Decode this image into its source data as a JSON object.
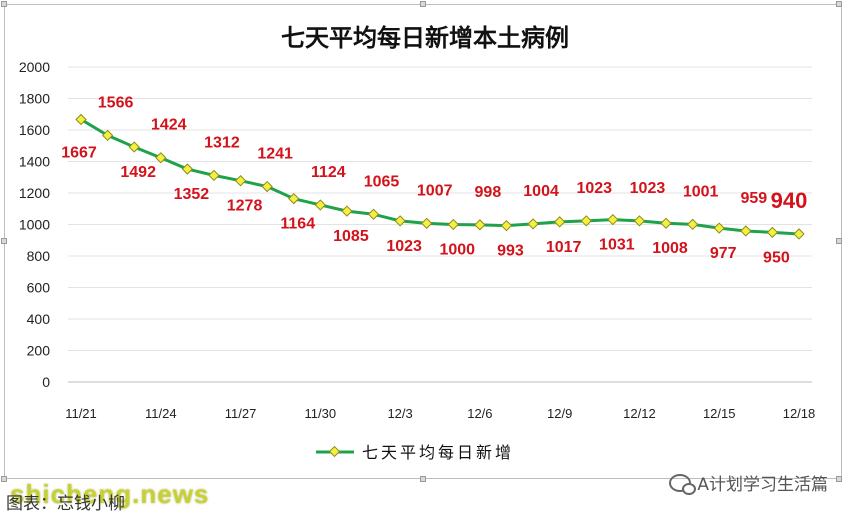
{
  "footer": {
    "source_text": "图表：忘钱小柳",
    "watermark": "shicheng.news",
    "brand_name": "A计划学习生活篇"
  },
  "colors": {
    "line": "#1fa24a",
    "marker_fill": "#f4f040",
    "marker_stroke": "#8a8a20",
    "label": "#d3131b"
  },
  "chart_data": {
    "type": "line",
    "title": "七天平均每日新增本土病例",
    "xlabel": "",
    "ylabel": "",
    "ylim": [
      0,
      2000
    ],
    "yticks": [
      0,
      200,
      400,
      600,
      800,
      1000,
      1200,
      1400,
      1600,
      1800,
      2000
    ],
    "x": [
      "11/21",
      "11/22",
      "11/23",
      "11/24",
      "11/25",
      "11/26",
      "11/27",
      "11/28",
      "11/29",
      "11/30",
      "12/1",
      "12/2",
      "12/3",
      "12/4",
      "12/5",
      "12/6",
      "12/7",
      "12/8",
      "12/9",
      "12/10",
      "12/11",
      "12/12",
      "12/13",
      "12/14",
      "12/15",
      "12/16",
      "12/17",
      "12/18"
    ],
    "xticks_shown": [
      "11/21",
      "11/24",
      "11/27",
      "11/30",
      "12/3",
      "12/6",
      "12/9",
      "12/12",
      "12/15",
      "12/18"
    ],
    "series": [
      {
        "name": "七天平均每日新增",
        "values": [
          1667,
          1566,
          1492,
          1424,
          1352,
          1312,
          1278,
          1241,
          1164,
          1124,
          1085,
          1065,
          1023,
          1007,
          1000,
          998,
          993,
          1004,
          1017,
          1023,
          1031,
          1023,
          1008,
          1001,
          977,
          959,
          950,
          940
        ]
      }
    ],
    "grid": true,
    "legend_position": "bottom"
  }
}
